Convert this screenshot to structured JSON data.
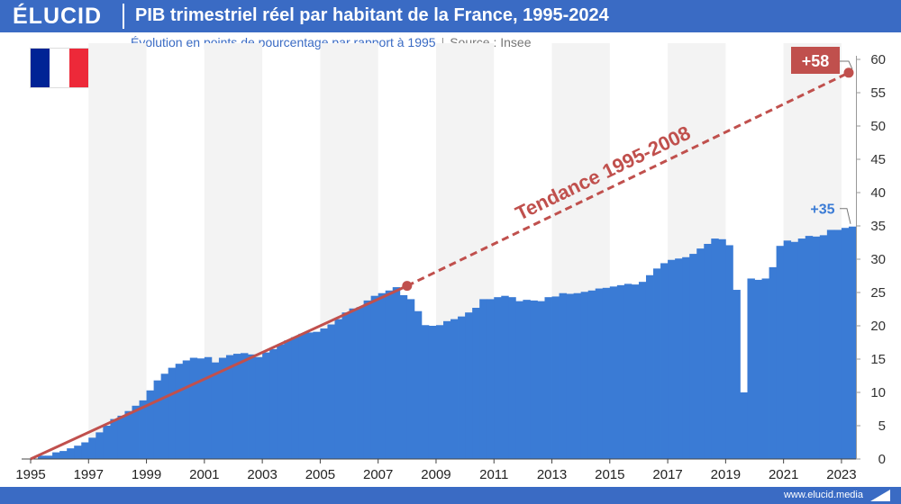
{
  "header": {
    "logo": "ÉLUCID",
    "title": "PIB trimestriel réel par habitant de la France, 1995-2024"
  },
  "subtitle": {
    "text": "Évolution en points de pourcentage par rapport à 1995",
    "separator": "|",
    "source": "Source : Insee"
  },
  "flag": {
    "colors": [
      "#002395",
      "#ffffff",
      "#ed2939"
    ]
  },
  "footer": {
    "url": "www.elucid.media"
  },
  "colors": {
    "bar": "#3a7bd5",
    "trend": "#c0504d",
    "header": "#3a6bc4"
  },
  "chart_data": {
    "type": "bar",
    "x_start": 1995,
    "quarters_per_year": 4,
    "x_ticks": [
      "1995",
      "1997",
      "1999",
      "2001",
      "2003",
      "2005",
      "2007",
      "2009",
      "2011",
      "2013",
      "2015",
      "2017",
      "2019",
      "2021",
      "2023"
    ],
    "ylim": [
      0,
      60
    ],
    "y_ticks": [
      "0",
      "5",
      "10",
      "15",
      "20",
      "25",
      "30",
      "35",
      "40",
      "45",
      "50",
      "55",
      "60"
    ],
    "values": [
      0,
      0.5,
      0.5,
      1,
      1.2,
      1.6,
      2,
      2.5,
      3.2,
      4,
      5,
      6,
      6.5,
      7.2,
      8,
      8.8,
      10.3,
      11.8,
      12.8,
      13.7,
      14.3,
      14.8,
      15.2,
      15.1,
      15.3,
      14.5,
      15.2,
      15.6,
      15.8,
      15.9,
      15.7,
      15.3,
      16,
      16.5,
      17.2,
      17.8,
      18.3,
      18.8,
      19,
      19.1,
      19.6,
      20.2,
      21,
      22,
      22.6,
      22.8,
      23.8,
      24.5,
      24.9,
      25.3,
      25.8,
      24.6,
      24,
      22.2,
      20.1,
      20,
      20.1,
      20.7,
      21,
      21.4,
      22,
      22.7,
      24,
      24,
      24.3,
      24.5,
      24.3,
      23.7,
      23.9,
      23.8,
      23.7,
      24.3,
      24.4,
      24.9,
      24.8,
      24.9,
      25.1,
      25.3,
      25.6,
      25.7,
      25.9,
      26.1,
      26.3,
      26.2,
      26.6,
      27.6,
      28.6,
      29.4,
      29.9,
      30.1,
      30.3,
      30.8,
      31.6,
      32.3,
      33.1,
      33,
      32.1,
      25.4,
      10,
      27.1,
      26.9,
      27.1,
      28.8,
      32,
      32.8,
      32.6,
      33.1,
      33.5,
      33.4,
      33.6,
      34.4,
      34.4,
      34.7,
      34.9
    ],
    "trend": {
      "label": "Tendance 1995-2008",
      "start_value": 0,
      "mid_x": 2008,
      "mid_value": 26,
      "end_value": 58
    },
    "annotations": {
      "end_trend": "+58",
      "end_bar": "+35"
    }
  }
}
